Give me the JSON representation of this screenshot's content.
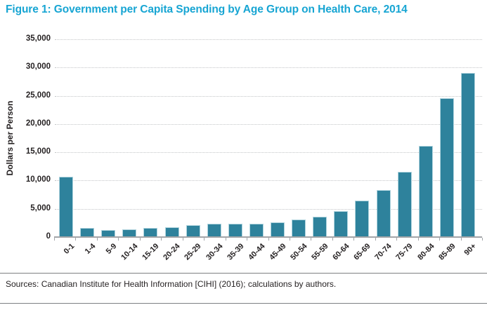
{
  "figure": {
    "title": "Figure 1: Government per Capita Spending by Age Group on Health Care, 2014",
    "title_color": "#17a5d3",
    "source_note": "Sources: Canadian Institute for Health Information [CIHI] (2016); calculations by authors."
  },
  "chart_data": {
    "type": "bar",
    "title": "Government per Capita Spending by Age Group on Health Care, 2014",
    "xlabel": "",
    "ylabel": "Dollars per Person",
    "categories": [
      "0-1",
      "1-4",
      "5-9",
      "10-14",
      "15-19",
      "20-24",
      "25-29",
      "30-34",
      "35-39",
      "40-44",
      "45-49",
      "50-54",
      "55-59",
      "60-64",
      "65-69",
      "70-74",
      "75-79",
      "80-84",
      "85-89",
      "90+"
    ],
    "values": [
      10700,
      1600,
      1300,
      1400,
      1650,
      1750,
      2100,
      2400,
      2300,
      2300,
      2600,
      3050,
      3650,
      4600,
      6400,
      8300,
      11500,
      16100,
      24600,
      29100
    ],
    "ylim": [
      0,
      35000
    ],
    "yticks": [
      0,
      5000,
      10000,
      15000,
      20000,
      25000,
      30000,
      35000
    ],
    "grid": "horizontal-dotted",
    "legend": "none",
    "bar_color": "#2e829c",
    "gridline_color": "#c3c5c7",
    "axis_color": "#a3a5a8"
  }
}
